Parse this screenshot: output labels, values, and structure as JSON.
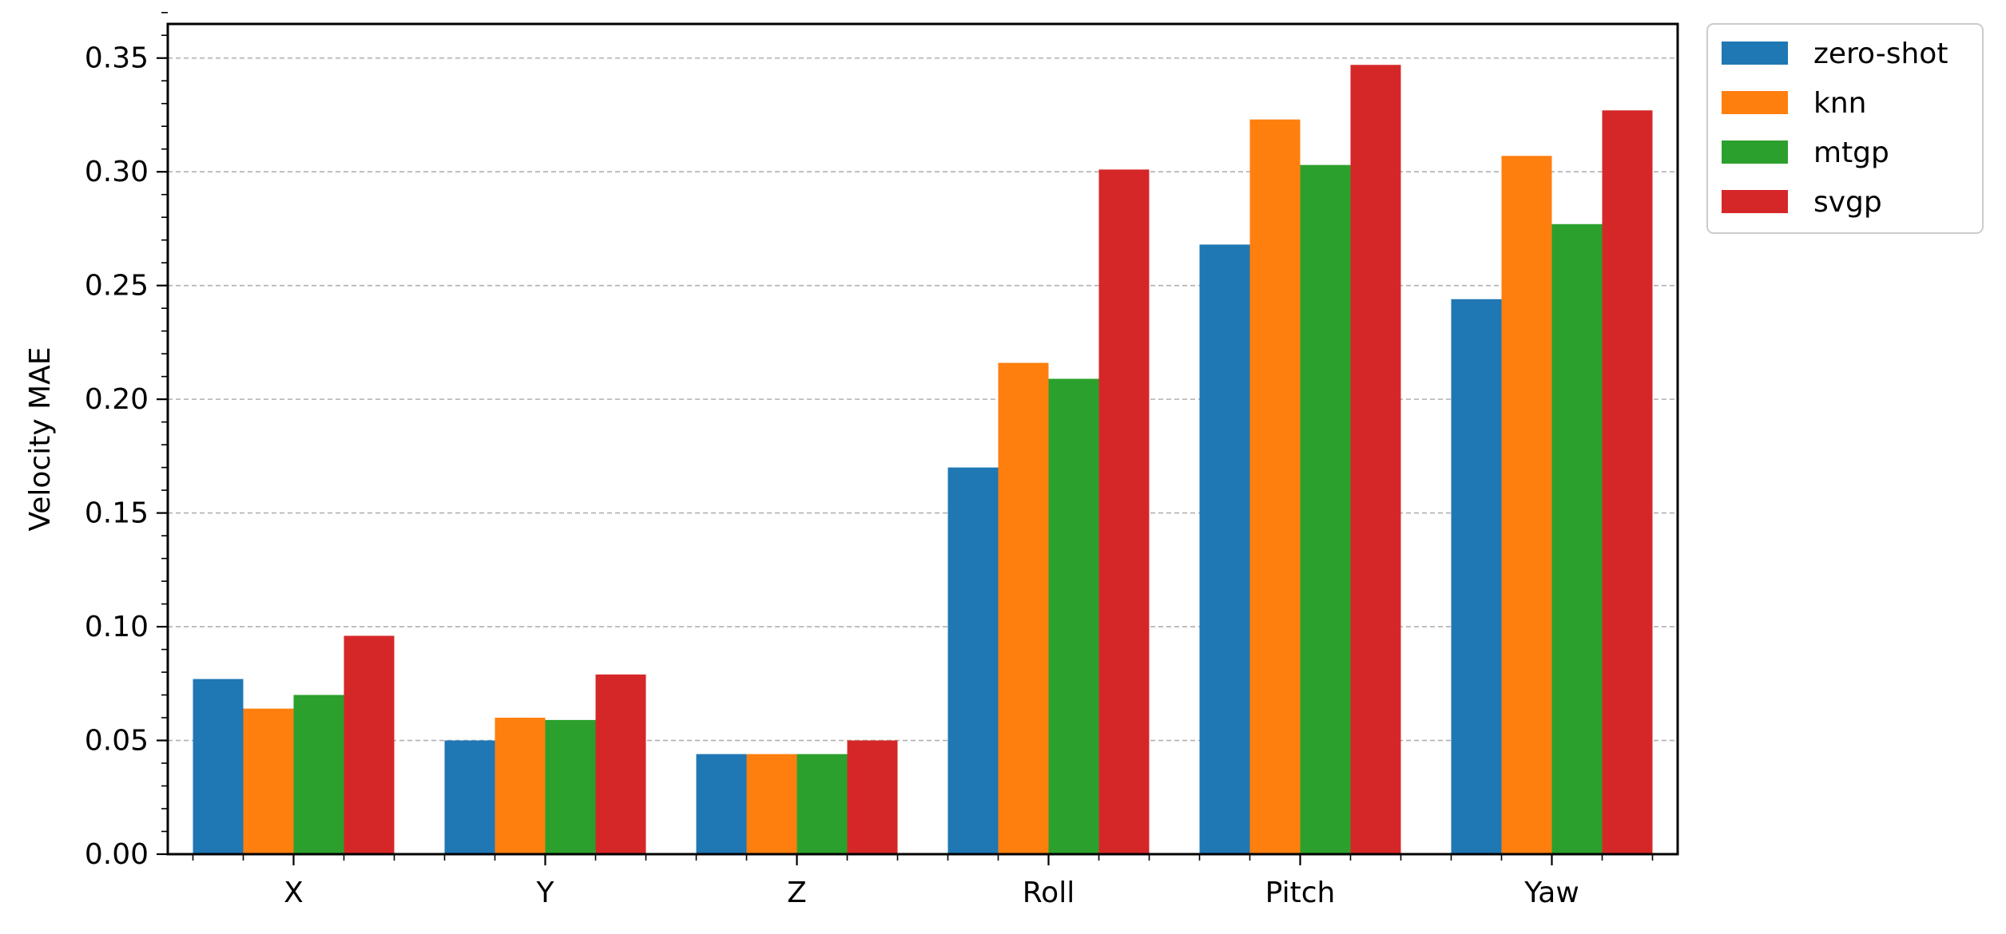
{
  "chart_data": {
    "type": "bar",
    "ylabel": "Velocity MAE",
    "xlabel": "",
    "ylim": [
      0,
      0.365
    ],
    "yticks": [
      "0.00",
      "0.05",
      "0.10",
      "0.15",
      "0.20",
      "0.25",
      "0.30",
      "0.35"
    ],
    "ytick_values": [
      0,
      0.05,
      0.1,
      0.15,
      0.2,
      0.25,
      0.3,
      0.35
    ],
    "grid": "horizontal dashed",
    "legend_position": "outside-top-right",
    "categories": [
      "X",
      "Y",
      "Z",
      "Roll",
      "Pitch",
      "Yaw"
    ],
    "series": [
      {
        "name": "zero-shot",
        "color": "#1f77b4",
        "values": [
          0.077,
          0.05,
          0.044,
          0.17,
          0.268,
          0.244
        ]
      },
      {
        "name": "knn",
        "color": "#ff7f0e",
        "values": [
          0.064,
          0.06,
          0.044,
          0.216,
          0.323,
          0.307
        ]
      },
      {
        "name": "mtgp",
        "color": "#2ca02c",
        "values": [
          0.07,
          0.059,
          0.044,
          0.209,
          0.303,
          0.277
        ]
      },
      {
        "name": "svgp",
        "color": "#d62728",
        "values": [
          0.096,
          0.079,
          0.05,
          0.301,
          0.347,
          0.327
        ]
      }
    ]
  }
}
